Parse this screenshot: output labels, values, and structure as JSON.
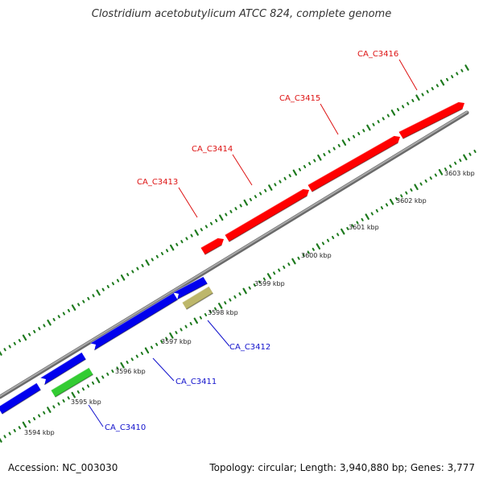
{
  "title": "Clostridium acetobutylicum ATCC 824, complete genome",
  "accession_text": "Accession: NC_003030",
  "summary_text": "Topology: circular; Length: 3,940,880 bp; Genes: 3,777",
  "colors": {
    "backbone": "#888888",
    "tick": "#1e7a1e",
    "label_red": "#dd1111",
    "label_blue": "#1111cc",
    "gene_red": "#ff0000",
    "gene_blue": "#0000ee",
    "gene_green": "#33cc33",
    "gene_khaki": "#bdb76b"
  },
  "scale_labels": [
    "3594 kbp",
    "3595 kbp",
    "3596 kbp",
    "3597 kbp",
    "3598 kbp",
    "3599 kbp",
    "3600 kbp",
    "3601 kbp",
    "3602 kbp",
    "3603 kbp"
  ],
  "gene_labels": [
    {
      "text": "CA_C3416",
      "color": "label_red"
    },
    {
      "text": "CA_C3415",
      "color": "label_red"
    },
    {
      "text": "CA_C3414",
      "color": "label_red"
    },
    {
      "text": "CA_C3413",
      "color": "label_red"
    },
    {
      "text": "CA_C3412",
      "color": "label_blue"
    },
    {
      "text": "CA_C3411",
      "color": "label_blue"
    },
    {
      "text": "CA_C3410",
      "color": "label_blue"
    }
  ],
  "genes": [
    {
      "strand": "plus",
      "color": "gene_red"
    },
    {
      "strand": "plus",
      "color": "gene_red"
    },
    {
      "strand": "plus",
      "color": "gene_red"
    },
    {
      "strand": "plus",
      "color": "gene_red"
    },
    {
      "strand": "minus",
      "color": "gene_blue"
    },
    {
      "strand": "minus",
      "color": "gene_blue"
    },
    {
      "strand": "minus",
      "color": "gene_blue"
    },
    {
      "strand": "minus",
      "color": "gene_blue"
    },
    {
      "strand": "minus",
      "color": "gene_blue"
    },
    {
      "strand": "minus",
      "color": "gene_green"
    },
    {
      "strand": "minus",
      "color": "gene_khaki"
    }
  ]
}
